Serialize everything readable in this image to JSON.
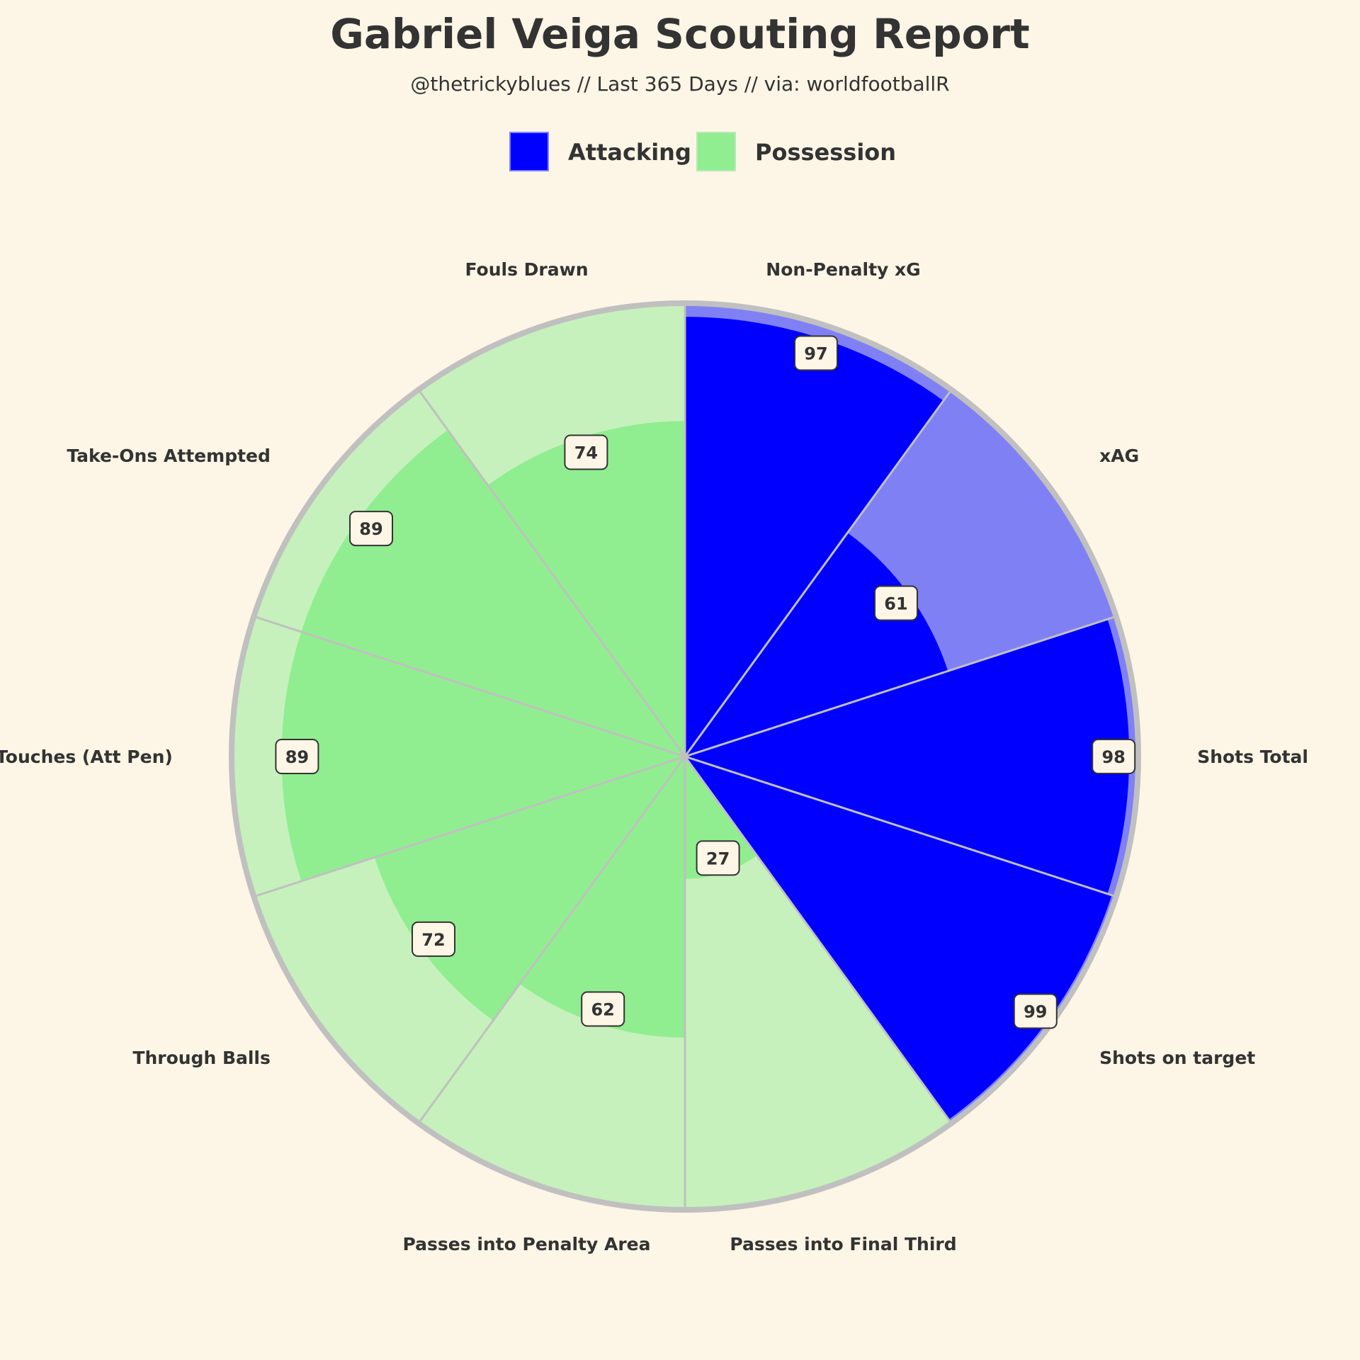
{
  "title": "Gabriel Veiga Scouting Report",
  "subtitle": "@thetrickyblues // Last 365 Days // via: worldfootballR",
  "colors": {
    "background": "#fdf5e6",
    "attacking": "#0000ff",
    "attacking_bg": "#8080f5",
    "possession": "#90ee90",
    "possession_bg": "#c6f1bc",
    "ring": "#c0c0c0",
    "text": "#333333"
  },
  "legend": [
    {
      "label": "Attacking",
      "color": "#0000ff"
    },
    {
      "label": "Possession",
      "color": "#90ee90"
    }
  ],
  "chart_data": {
    "type": "pie",
    "variant": "polar-radar",
    "title": "Gabriel Veiga Scouting Report",
    "subtitle": "@thetrickyblues // Last 365 Days // via: worldfootballR",
    "range": [
      0,
      100
    ],
    "legend_position": "top",
    "categories": [
      {
        "label": "Non-Penalty xG",
        "value": 97,
        "group": "Attacking"
      },
      {
        "label": "xAG",
        "value": 61,
        "group": "Attacking"
      },
      {
        "label": "Shots Total",
        "value": 98,
        "group": "Attacking"
      },
      {
        "label": "Shots on target",
        "value": 99,
        "group": "Attacking"
      },
      {
        "label": "Passes into Final Third",
        "value": 27,
        "group": "Possession"
      },
      {
        "label": "Passes into Penalty Area",
        "value": 62,
        "group": "Possession"
      },
      {
        "label": "Through Balls",
        "value": 72,
        "group": "Possession"
      },
      {
        "label": "Touches (Att Pen)",
        "value": 89,
        "group": "Possession"
      },
      {
        "label": "Take-Ons Attempted",
        "value": 89,
        "group": "Possession"
      },
      {
        "label": "Fouls Drawn",
        "value": 74,
        "group": "Possession"
      }
    ]
  }
}
